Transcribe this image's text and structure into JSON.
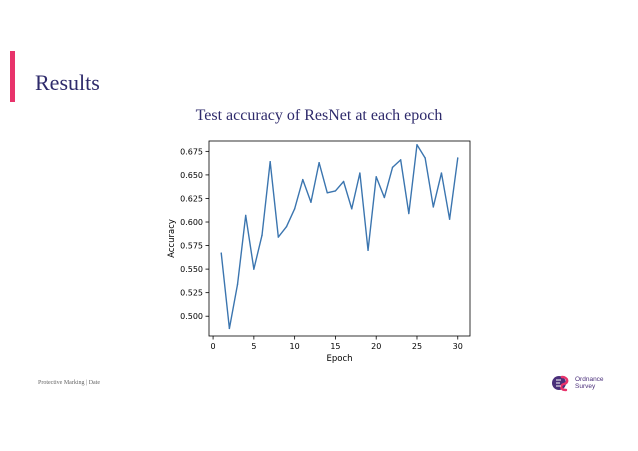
{
  "slide": {
    "title": "Results",
    "chart_caption": "Test accuracy of ResNet at each epoch",
    "footer": "Protective Marking  |  Date",
    "logo": {
      "line1": "Ordnance",
      "line2": "Survey",
      "icon": "ordnance-survey-logo-icon"
    },
    "accent_color": "#e8336b",
    "title_color": "#2e2a6b"
  },
  "chart_data": {
    "type": "line",
    "title": "",
    "xlabel": "Epoch",
    "ylabel": "Accuracy",
    "xlim": [
      -0.5,
      31.5
    ],
    "ylim": [
      0.479,
      0.686
    ],
    "xticks": [
      0,
      5,
      10,
      15,
      20,
      25,
      30
    ],
    "yticks": [
      0.5,
      0.525,
      0.55,
      0.575,
      0.6,
      0.625,
      0.65,
      0.675
    ],
    "ytick_labels": [
      "0.500",
      "0.525",
      "0.550",
      "0.575",
      "0.600",
      "0.625",
      "0.650",
      "0.675"
    ],
    "grid": false,
    "series": [
      {
        "color": "#3b75af",
        "x": [
          1,
          2,
          3,
          4,
          5,
          6,
          7,
          8,
          9,
          10,
          11,
          12,
          13,
          14,
          15,
          16,
          17,
          18,
          19,
          20,
          21,
          22,
          23,
          24,
          25,
          26,
          27,
          28,
          29,
          30
        ],
        "values": [
          0.567,
          0.487,
          0.534,
          0.607,
          0.55,
          0.586,
          0.664,
          0.584,
          0.595,
          0.614,
          0.645,
          0.621,
          0.663,
          0.631,
          0.633,
          0.643,
          0.614,
          0.652,
          0.57,
          0.648,
          0.626,
          0.658,
          0.666,
          0.609,
          0.682,
          0.668,
          0.616,
          0.652,
          0.603,
          0.668
        ]
      }
    ]
  }
}
